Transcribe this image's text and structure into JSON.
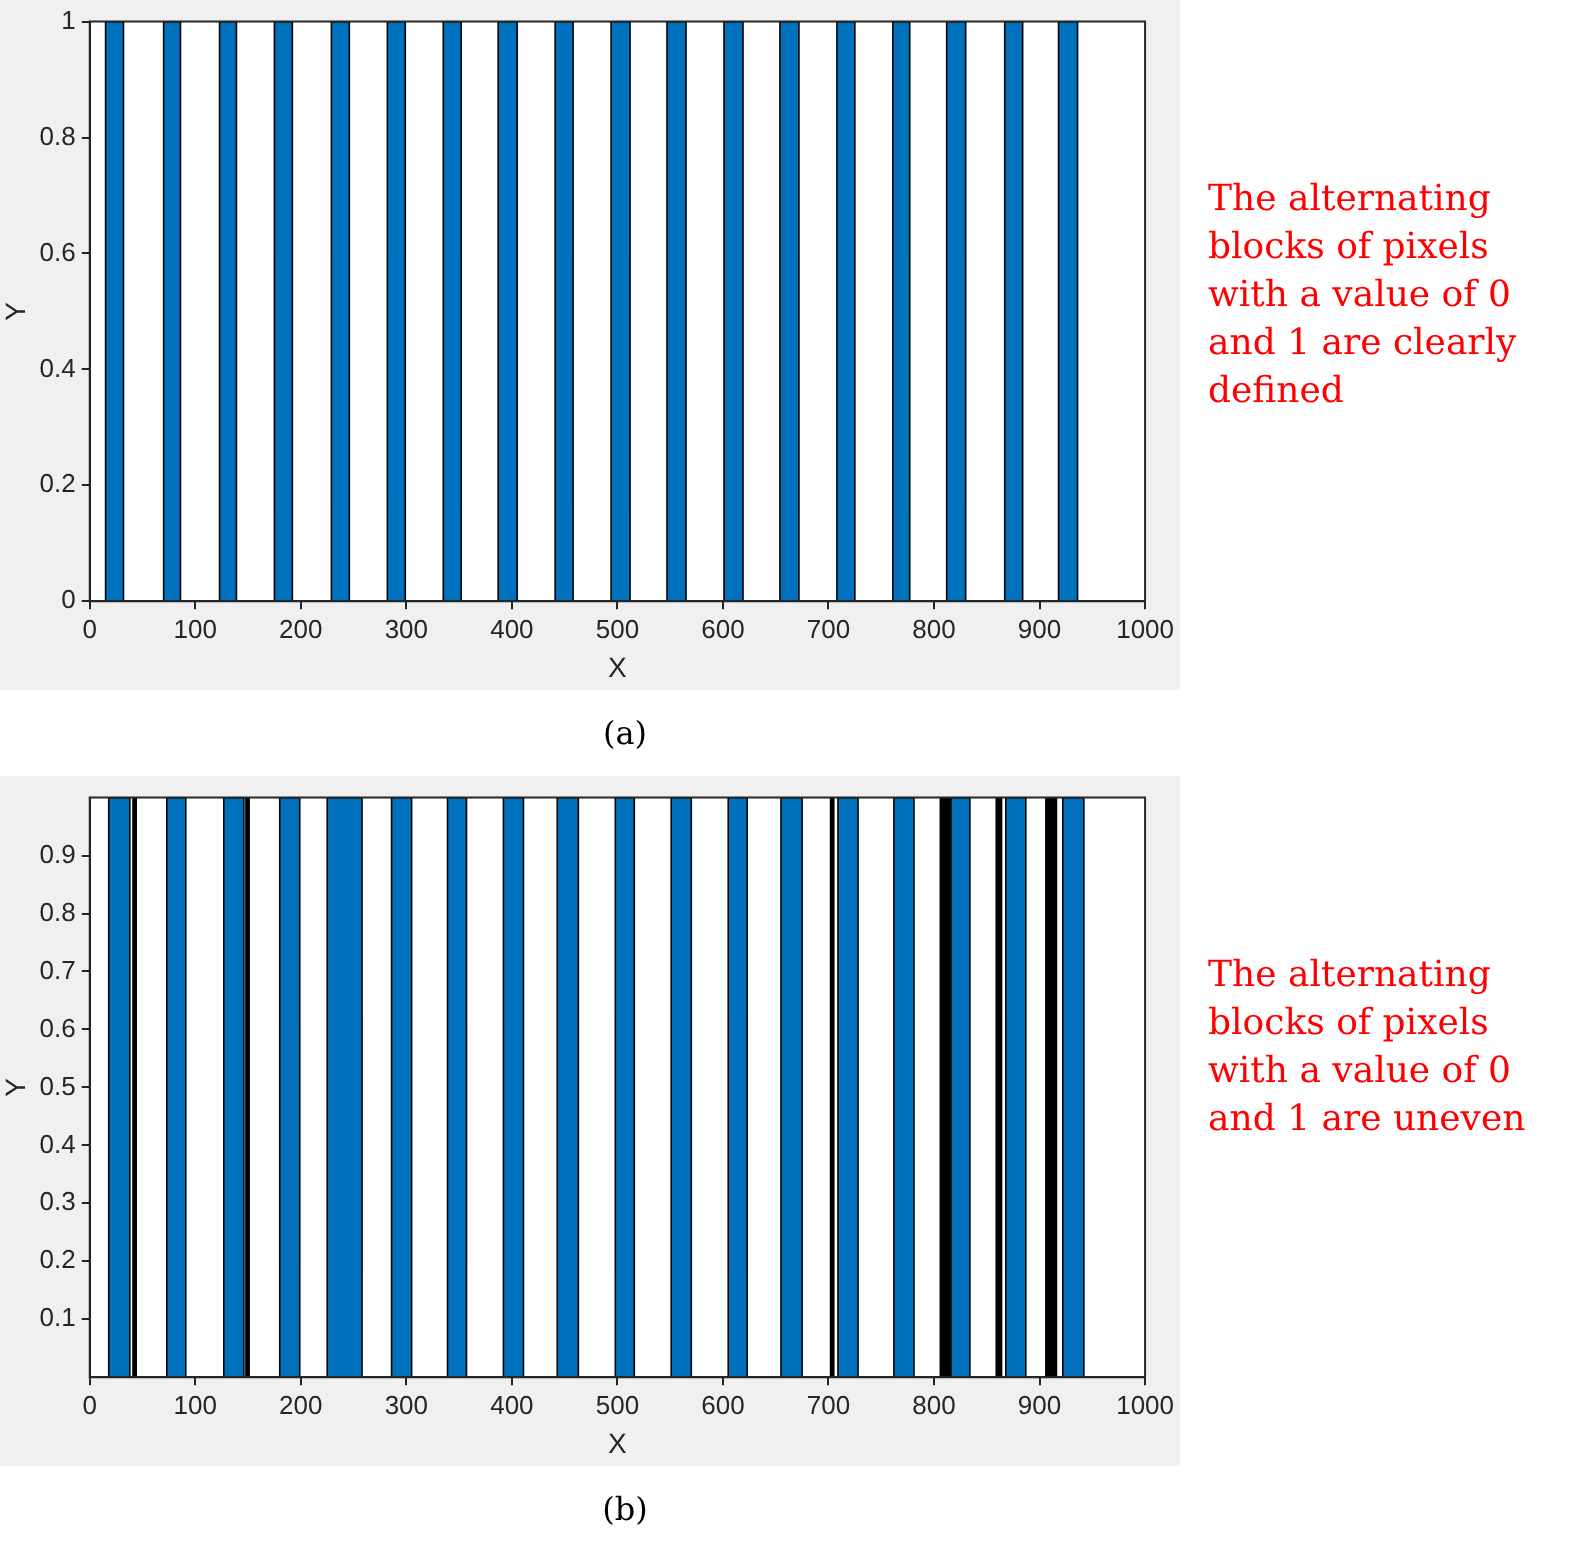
{
  "chart_data": [
    {
      "type": "histogram",
      "xlabel": "X",
      "ylabel": "Y",
      "color": "#0072bd",
      "bins": [
        15,
        32,
        70,
        86,
        123,
        139,
        175,
        192,
        229,
        246,
        282,
        299,
        335,
        352,
        387,
        405,
        441,
        458,
        494,
        512,
        547,
        565,
        601,
        619,
        654,
        672,
        708,
        725,
        761,
        777,
        812,
        830,
        867,
        884,
        918,
        936
      ],
      "values": [
        1,
        0,
        1,
        0,
        1,
        0,
        1,
        0,
        1,
        0,
        1,
        0,
        1,
        0,
        1,
        0,
        1,
        0,
        1,
        0,
        1,
        0,
        1,
        0,
        1,
        0,
        1,
        0,
        1,
        0,
        1,
        0,
        1,
        0,
        1
      ],
      "xlim": [
        0,
        1000
      ],
      "xticks": [
        0,
        100,
        200,
        300,
        400,
        500,
        600,
        700,
        800,
        900,
        1000
      ],
      "ylim": [
        0,
        1
      ],
      "yticks": [
        0,
        0.2,
        0.4,
        0.6,
        0.8,
        1
      ],
      "annotations": [
        "The alternating blocks of pixels with a value of 0 and 1 are clearly defined",
        "(a)"
      ]
    },
    {
      "type": "histogram",
      "xlabel": "X",
      "ylabel": "Y",
      "bins": [
        18,
        38,
        41,
        44,
        73,
        91,
        127,
        146,
        148,
        151,
        180,
        199,
        225,
        258,
        286,
        305,
        339,
        357,
        392,
        411,
        443,
        463,
        498,
        516,
        551,
        570,
        605,
        623,
        655,
        675,
        702,
        705,
        709,
        728,
        762,
        781,
        806,
        816,
        834,
        859,
        864,
        868,
        887,
        906,
        916,
        922,
        942
      ],
      "values": [
        1,
        0,
        1,
        0,
        1,
        0,
        1,
        0,
        1,
        0,
        1,
        0,
        1,
        0,
        1,
        0,
        1,
        0,
        1,
        0,
        1,
        0,
        1,
        0,
        1,
        0,
        1,
        0,
        1,
        0,
        1,
        0,
        1,
        0,
        1,
        0,
        1,
        1,
        0,
        1,
        0,
        1,
        0,
        1,
        0,
        1
      ],
      "colors": [
        "#0072bd",
        "#0072bd",
        "#000000",
        "#0072bd",
        "#0072bd",
        "#0072bd",
        "#0072bd",
        "#0072bd",
        "#000000",
        "#0072bd",
        "#0072bd",
        "#0072bd",
        "#0072bd",
        "#0072bd",
        "#0072bd",
        "#0072bd",
        "#0072bd",
        "#0072bd",
        "#0072bd",
        "#0072bd",
        "#0072bd",
        "#0072bd",
        "#0072bd",
        "#0072bd",
        "#0072bd",
        "#0072bd",
        "#0072bd",
        "#0072bd",
        "#0072bd",
        "#0072bd",
        "#000000",
        "#0072bd",
        "#0072bd",
        "#0072bd",
        "#0072bd",
        "#0072bd",
        "#000000",
        "#0072bd",
        "#0072bd",
        "#000000",
        "#0072bd",
        "#0072bd",
        "#0072bd",
        "#000000",
        "#0072bd",
        "#0072bd"
      ],
      "xlim": [
        0,
        1000
      ],
      "xticks": [
        0,
        100,
        200,
        300,
        400,
        500,
        600,
        700,
        800,
        900,
        1000
      ],
      "ylim": [
        0,
        1
      ],
      "yticks": [
        0.1,
        0.2,
        0.3,
        0.4,
        0.5,
        0.6,
        0.7,
        0.8,
        0.9
      ],
      "annotations": [
        "The alternating blocks of pixels with a value of 0 and 1 are uneven",
        "(b)"
      ]
    }
  ]
}
